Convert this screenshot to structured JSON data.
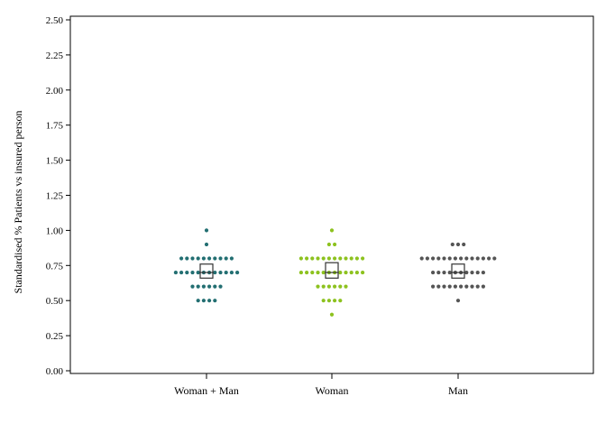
{
  "chart_data": {
    "type": "scatter",
    "subtype": "dot-strip with box markers",
    "title": "",
    "xlabel": "",
    "ylabel": "Standardised % Patients vs insured person",
    "ylim": [
      0,
      2.5
    ],
    "yticks": [
      "0.00",
      "0.25",
      "0.50",
      "0.75",
      "1.00",
      "1.25",
      "1.50",
      "1.75",
      "2.00",
      "2.25",
      "2.50"
    ],
    "grid": false,
    "categories": [
      "Woman + Man",
      "Woman",
      "Man"
    ],
    "series": [
      {
        "category": "Woman + Man",
        "color": "#236f72",
        "values_by_level": [
          {
            "y": 1.0,
            "count": 1
          },
          {
            "y": 0.9,
            "count": 1
          },
          {
            "y": 0.8,
            "count": 10
          },
          {
            "y": 0.7,
            "count": 12
          },
          {
            "y": 0.6,
            "count": 6
          },
          {
            "y": 0.5,
            "count": 4
          }
        ],
        "box": {
          "q1": 0.66,
          "median": 0.7,
          "q3": 0.76
        }
      },
      {
        "category": "Woman",
        "color": "#8dc21f",
        "values_by_level": [
          {
            "y": 1.0,
            "count": 1
          },
          {
            "y": 0.9,
            "count": 2
          },
          {
            "y": 0.8,
            "count": 12
          },
          {
            "y": 0.7,
            "count": 12
          },
          {
            "y": 0.6,
            "count": 6
          },
          {
            "y": 0.5,
            "count": 4
          },
          {
            "y": 0.4,
            "count": 1
          }
        ],
        "box": {
          "q1": 0.66,
          "median": 0.7,
          "q3": 0.77
        }
      },
      {
        "category": "Man",
        "color": "#555555",
        "values_by_level": [
          {
            "y": 0.9,
            "count": 3
          },
          {
            "y": 0.8,
            "count": 14
          },
          {
            "y": 0.7,
            "count": 10
          },
          {
            "y": 0.6,
            "count": 10
          },
          {
            "y": 0.5,
            "count": 1
          }
        ],
        "box": {
          "q1": 0.66,
          "median": 0.7,
          "q3": 0.76
        }
      }
    ]
  }
}
